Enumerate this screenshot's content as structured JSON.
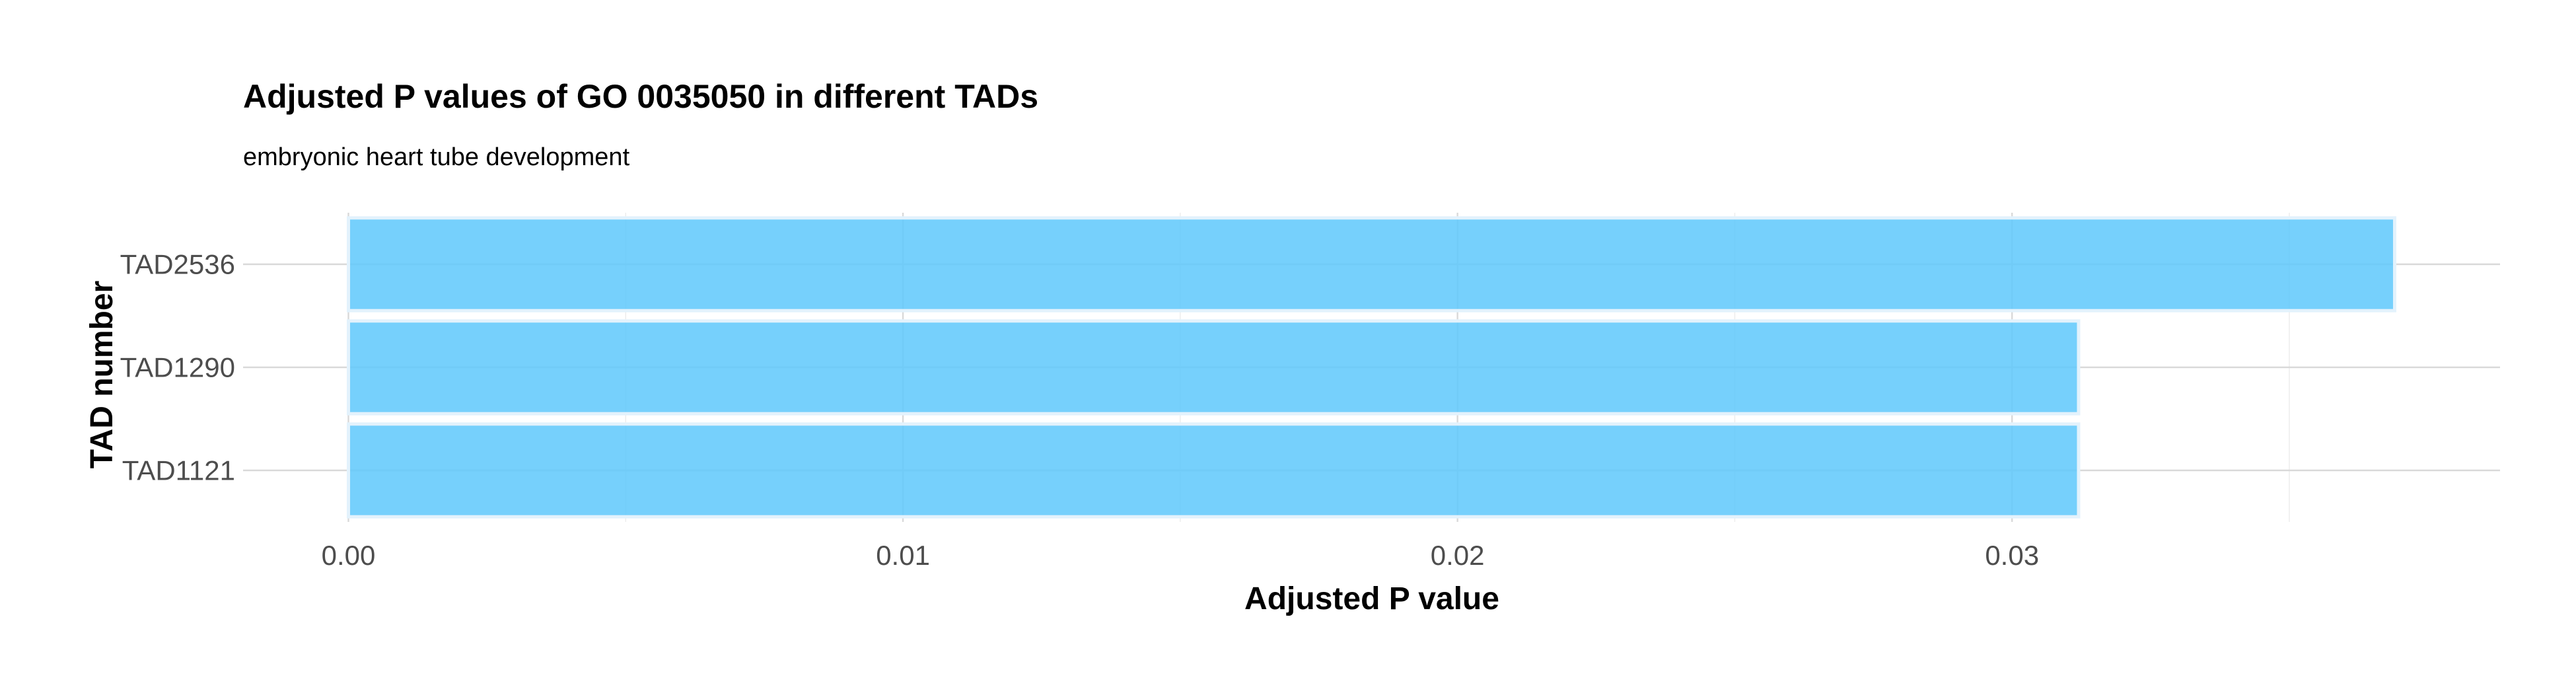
{
  "chart_data": {
    "type": "bar",
    "orientation": "horizontal",
    "title": "Adjusted P values of GO 0035050 in different TADs",
    "subtitle": "embryonic heart tube development",
    "xlabel": "Adjusted P value",
    "ylabel": "TAD number",
    "categories": [
      "TAD2536",
      "TAD1290",
      "TAD1121"
    ],
    "values": [
      0.0369,
      0.0312,
      0.0312
    ],
    "xlim": [
      -0.0019,
      0.0388
    ],
    "xticks": [
      0.0,
      0.01,
      0.02,
      0.03
    ],
    "xtick_labels": [
      "0.00",
      "0.01",
      "0.02",
      "0.03"
    ],
    "grid": true,
    "legend": "none",
    "colors": {
      "bar_fill": "#5ec8fb",
      "bar_stroke": "#e3f2fc",
      "grid_major": "#d9d9d9",
      "grid_minor": "#ececec"
    }
  }
}
